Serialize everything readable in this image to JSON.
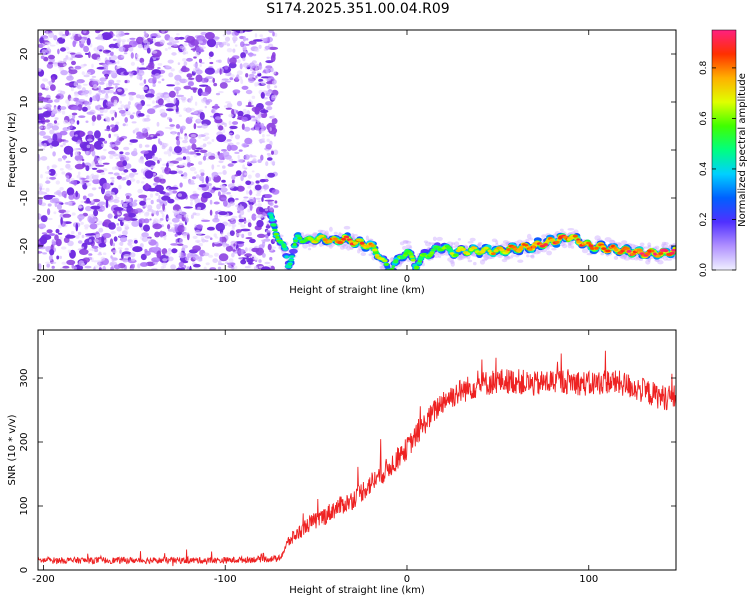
{
  "title": "S174.2025.351.00.04.R09",
  "colors": {
    "snr_line": "#ee2222",
    "background_dots": "#8a3de0",
    "track": [
      "#e8d8ff",
      "#b070ff",
      "#4b2bff",
      "#00c8ff",
      "#00e070",
      "#ffe000",
      "#ff3a20"
    ]
  },
  "chart_data": [
    {
      "type": "heatmap",
      "name": "spectrogram",
      "title": "S174.2025.351.00.04.R09",
      "xlabel": "Height of straight line (km)",
      "ylabel": "Frequency (Hz)",
      "xlim": [
        -203,
        148
      ],
      "ylim": [
        -25,
        25
      ],
      "xticks": [
        -200,
        -100,
        0,
        100
      ],
      "yticks": [
        -20,
        -10,
        0,
        10,
        20
      ],
      "colorbar": {
        "label": "Normalized spectral amplitude",
        "range": [
          0,
          0.95
        ],
        "ticks": [
          "0.0",
          "0.2",
          "0.4",
          "0.6",
          "0.8"
        ],
        "ticks_values": [
          0,
          0.2,
          0.4,
          0.6,
          0.8
        ],
        "colormap": [
          "#f0f0ff",
          "#b090ff",
          "#5030ff",
          "#0060ff",
          "#00d0ff",
          "#00ff80",
          "#40ff00",
          "#e0ff00",
          "#ffb000",
          "#ff3000",
          "#ff2080"
        ]
      },
      "noise_region_x": [
        -203,
        -75
      ],
      "track": {
        "x": [
          -75,
          -72,
          -70,
          -67,
          -65,
          -60,
          -55,
          -50,
          -45,
          -40,
          -35,
          -30,
          -25,
          -20,
          -15,
          -10,
          -5,
          0,
          5,
          10,
          15,
          20,
          25,
          30,
          40,
          50,
          60,
          70,
          80,
          90,
          100,
          110,
          120,
          130,
          140,
          148
        ],
        "frequency": [
          -14,
          -17,
          -19,
          -21,
          -24,
          -18,
          -19,
          -18.5,
          -18.5,
          -19,
          -18.5,
          -19,
          -19.5,
          -20,
          -22,
          -25,
          -23,
          -21,
          -24,
          -22,
          -21,
          -20,
          -21.5,
          -21,
          -21,
          -21,
          -20.5,
          -20,
          -19,
          -18,
          -20,
          -20.5,
          -21,
          -21.5,
          -21.5,
          -21
        ],
        "amplitude": [
          0.5,
          0.55,
          0.6,
          0.5,
          0.5,
          0.55,
          0.6,
          0.7,
          0.75,
          0.8,
          0.85,
          0.85,
          0.8,
          0.8,
          0.7,
          0.5,
          0.55,
          0.6,
          0.55,
          0.6,
          0.55,
          0.6,
          0.65,
          0.7,
          0.7,
          0.75,
          0.8,
          0.82,
          0.85,
          0.8,
          0.8,
          0.85,
          0.88,
          0.9,
          0.9,
          0.85
        ]
      }
    },
    {
      "type": "line",
      "name": "snr",
      "xlabel": "Height of straight line (km)",
      "ylabel": "SNR (10 * v/v)",
      "xlim": [
        -203,
        148
      ],
      "ylim": [
        0,
        375
      ],
      "xticks": [
        -200,
        -100,
        0,
        100
      ],
      "yticks": [
        0,
        100,
        200,
        300
      ],
      "series": [
        {
          "x": [
            -203,
            -150,
            -100,
            -70,
            -65,
            -55,
            -45,
            -40,
            -30,
            -20,
            -10,
            0,
            10,
            20,
            30,
            40,
            50,
            60,
            70,
            80,
            90,
            100,
            110,
            120,
            130,
            140,
            148
          ],
          "y": [
            15,
            15,
            15,
            18,
            45,
            70,
            85,
            95,
            110,
            135,
            160,
            190,
            230,
            265,
            280,
            290,
            295,
            295,
            290,
            295,
            295,
            290,
            295,
            290,
            280,
            270,
            270
          ],
          "noise": [
            10,
            10,
            10,
            10,
            20,
            25,
            30,
            30,
            30,
            35,
            35,
            35,
            35,
            40,
            40,
            40,
            40,
            40,
            40,
            40,
            40,
            40,
            40,
            40,
            40,
            40,
            40
          ]
        }
      ]
    }
  ]
}
